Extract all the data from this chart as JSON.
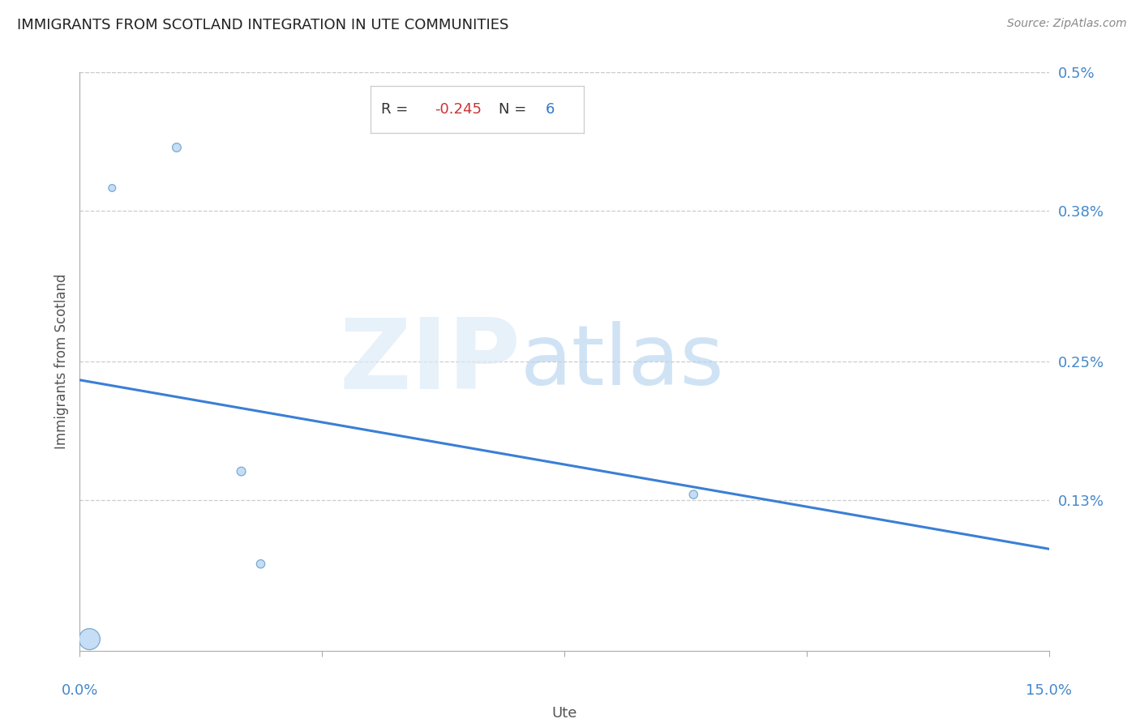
{
  "title": "IMMIGRANTS FROM SCOTLAND INTEGRATION IN UTE COMMUNITIES",
  "source": "Source: ZipAtlas.com",
  "xlabel": "Ute",
  "ylabel": "Immigrants from Scotland",
  "R": -0.245,
  "N": 6,
  "xlim": [
    0.0,
    15.0
  ],
  "ylim": [
    0.0,
    0.5
  ],
  "ytick_values": [
    0.13,
    0.25,
    0.38,
    0.5
  ],
  "ytick_labels": [
    "0.13%",
    "0.25%",
    "0.38%",
    "0.5%"
  ],
  "scatter_x": [
    0.5,
    1.5,
    2.5,
    2.8,
    9.5,
    0.15
  ],
  "scatter_y": [
    0.4,
    0.435,
    0.155,
    0.075,
    0.135,
    0.01
  ],
  "scatter_sizes": [
    40,
    60,
    60,
    55,
    55,
    350
  ],
  "regression_x0": 0.0,
  "regression_x1": 15.0,
  "regression_y0": 0.234,
  "regression_y1": 0.088,
  "point_fill": "#c5ddf5",
  "point_edge": "#7aaad0",
  "line_color": "#3a7fd5",
  "title_color": "#222222",
  "ylabel_color": "#555555",
  "xlabel_color": "#555555",
  "ytick_color": "#4488cc",
  "xtick_color": "#4488cc",
  "source_color": "#888888",
  "grid_color": "#cccccc",
  "bg_color": "#ffffff",
  "R_value_color": "#cc3333",
  "N_value_color": "#3377cc",
  "box_edge_color": "#cccccc"
}
